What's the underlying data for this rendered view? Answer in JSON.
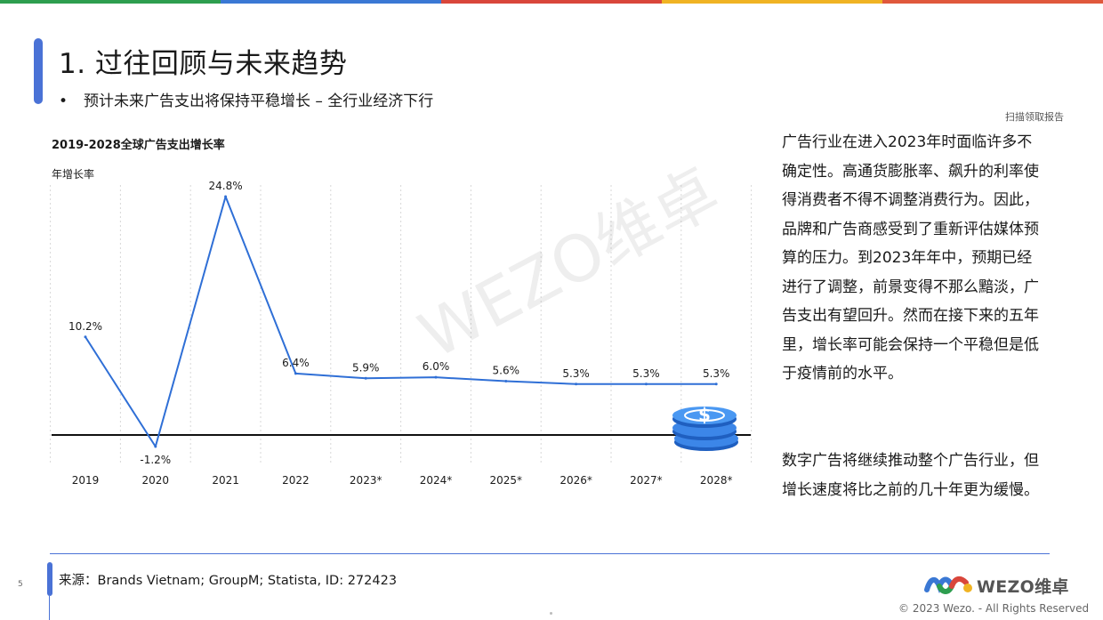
{
  "colors": {
    "accent": "#4a72d6",
    "line": "#2f6fd6",
    "top_bar": [
      "#2e9e4f",
      "#3a78d4",
      "#d9463b",
      "#f0b323",
      "#e0583c"
    ]
  },
  "header": {
    "title": "1. 过往回顾与未来趋势",
    "bullet": "•",
    "subtitle": "预计未来广告支出将保持平稳增长 – 全行业经济下行",
    "scan_note": "扫描领取报告"
  },
  "chart_data": {
    "type": "line",
    "title": "2019-2028全球广告支出增长率",
    "ylabel": "年增长率",
    "xlabel": "",
    "categories": [
      "2019",
      "2020",
      "2021",
      "2022",
      "2023*",
      "2024*",
      "2025*",
      "2026*",
      "2027*",
      "2028*"
    ],
    "values": [
      10.2,
      -1.2,
      24.8,
      6.4,
      5.9,
      6.0,
      5.6,
      5.3,
      5.3,
      5.3
    ],
    "value_labels": [
      "10.2%",
      "-1.2%",
      "24.8%",
      "6.4%",
      "5.9%",
      "6.0%",
      "5.6%",
      "5.3%",
      "5.3%",
      "5.3%"
    ],
    "ylim": [
      -1.2,
      24.8
    ],
    "grid": "vertical dotted",
    "legend": "none",
    "decoration": "coin-stack-icon"
  },
  "watermark": "WEZO维卓",
  "body_text": {
    "p1": "广告行业在进入2023年时面临许多不确定性。高通货膨胀率、飙升的利率使得消费者不得不调整消费行为。因此，品牌和广告商感受到了重新评估媒体预算的压力。到2023年年中，预期已经进行了调整，前景变得不那么黯淡，广告支出有望回升。然而在接下来的五年里，增长率可能会保持一个平稳但是低于疫情前的水平。",
    "p2": "数字广告将继续推动整个广告行业，但增长速度将比之前的几十年更为缓慢。"
  },
  "footer": {
    "source": "来源：Brands Vietnam; GroupM; Statista, ID: 272423",
    "page_number": "5",
    "logo_text": "WEZO维卓",
    "copyright": "© 2023 Wezo. - All Rights Reserved"
  }
}
